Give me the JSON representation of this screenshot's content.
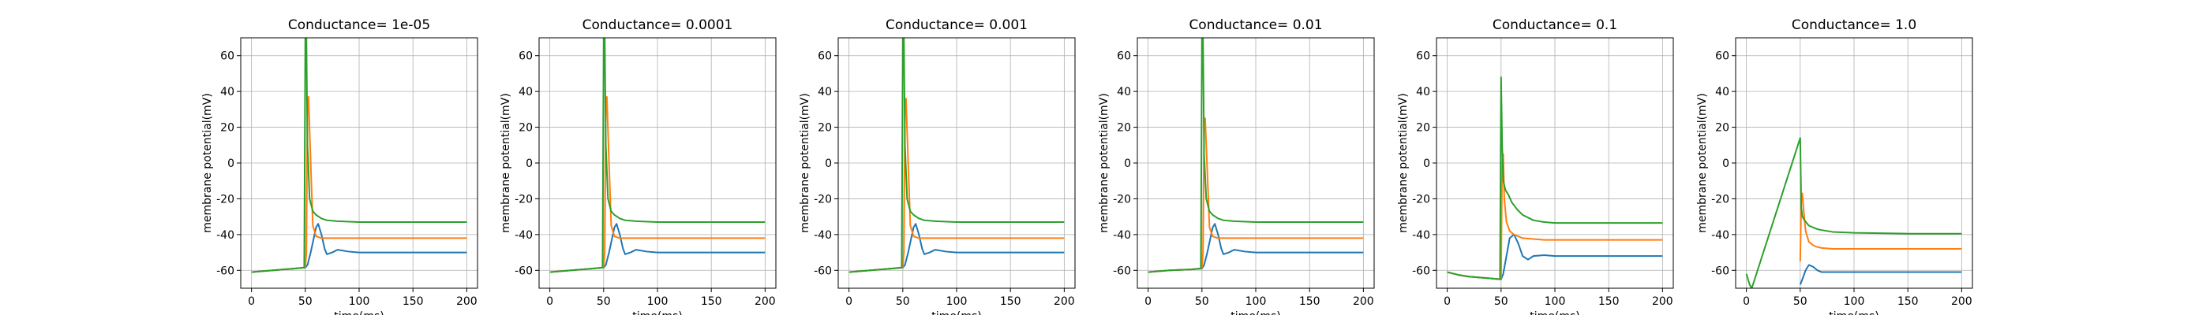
{
  "chart_data": [
    {
      "type": "line",
      "title": "Conductance= 1e-05",
      "xlabel": "time(ms)",
      "ylabel": "membrane potential(mV)",
      "xlim": [
        -10,
        210
      ],
      "ylim": [
        -70,
        70
      ],
      "xticks": [
        "0",
        "50",
        "100",
        "150",
        "200"
      ],
      "yticks": [
        "-60",
        "-40",
        "-20",
        "0",
        "20",
        "40",
        "60"
      ],
      "grid": true,
      "series": [
        {
          "color": "#1f77b4",
          "x": [
            0,
            20,
            40,
            49,
            50,
            52,
            55,
            60,
            62,
            65,
            68,
            70,
            75,
            80,
            90,
            100,
            120,
            150,
            200
          ],
          "y": [
            -61,
            -60,
            -59,
            -58.5,
            -58.5,
            -57,
            -50,
            -36,
            -34,
            -40,
            -48,
            -51,
            -50,
            -48.5,
            -49.5,
            -50,
            -50,
            -50,
            -50
          ]
        },
        {
          "color": "#ff7f0e",
          "x": [
            0,
            20,
            40,
            49,
            50,
            51,
            52,
            53,
            55,
            57,
            60,
            65,
            70,
            80,
            100,
            150,
            200
          ],
          "y": [
            -61,
            -60,
            -59,
            -58.5,
            -58,
            -50,
            30,
            37,
            0,
            -35,
            -41,
            -42,
            -42,
            -42,
            -42,
            -42,
            -42
          ]
        },
        {
          "color": "#2ca02c",
          "x": [
            0,
            20,
            40,
            48,
            49,
            50,
            51,
            52,
            54,
            57,
            60,
            65,
            70,
            80,
            100,
            150,
            200
          ],
          "y": [
            -61,
            -60,
            -59,
            -58.5,
            -58.5,
            70,
            70,
            10,
            -20,
            -27,
            -29,
            -31,
            -32,
            -32.5,
            -33,
            -33,
            -33
          ]
        }
      ]
    },
    {
      "type": "line",
      "title": "Conductance= 0.0001",
      "xlabel": "time(ms)",
      "ylabel": "membrane potential(mV)",
      "xlim": [
        -10,
        210
      ],
      "ylim": [
        -70,
        70
      ],
      "xticks": [
        "0",
        "50",
        "100",
        "150",
        "200"
      ],
      "yticks": [
        "-60",
        "-40",
        "-20",
        "0",
        "20",
        "40",
        "60"
      ],
      "grid": true,
      "series": [
        {
          "color": "#1f77b4",
          "x": [
            0,
            20,
            40,
            49,
            50,
            52,
            55,
            60,
            62,
            65,
            68,
            70,
            75,
            80,
            90,
            100,
            120,
            150,
            200
          ],
          "y": [
            -61,
            -60,
            -59,
            -58.5,
            -58.5,
            -57,
            -50,
            -36,
            -34,
            -40,
            -48,
            -51,
            -50,
            -48.5,
            -49.5,
            -50,
            -50,
            -50,
            -50
          ]
        },
        {
          "color": "#ff7f0e",
          "x": [
            0,
            20,
            40,
            49,
            50,
            51,
            52,
            53,
            55,
            57,
            60,
            65,
            70,
            80,
            100,
            150,
            200
          ],
          "y": [
            -61,
            -60,
            -59,
            -58.5,
            -58,
            -50,
            30,
            37,
            0,
            -35,
            -41,
            -42,
            -42,
            -42,
            -42,
            -42,
            -42
          ]
        },
        {
          "color": "#2ca02c",
          "x": [
            0,
            20,
            40,
            48,
            49,
            50,
            51,
            52,
            54,
            57,
            60,
            65,
            70,
            80,
            100,
            150,
            200
          ],
          "y": [
            -61,
            -60,
            -59,
            -58.5,
            -58.5,
            70,
            70,
            10,
            -20,
            -27,
            -29,
            -31,
            -32,
            -32.5,
            -33,
            -33,
            -33
          ]
        }
      ]
    },
    {
      "type": "line",
      "title": "Conductance= 0.001",
      "xlabel": "time(ms)",
      "ylabel": "membrane potential(mV)",
      "xlim": [
        -10,
        210
      ],
      "ylim": [
        -70,
        70
      ],
      "xticks": [
        "0",
        "50",
        "100",
        "150",
        "200"
      ],
      "yticks": [
        "-60",
        "-40",
        "-20",
        "0",
        "20",
        "40",
        "60"
      ],
      "grid": true,
      "series": [
        {
          "color": "#1f77b4",
          "x": [
            0,
            20,
            40,
            49,
            50,
            52,
            55,
            60,
            62,
            65,
            68,
            70,
            75,
            80,
            90,
            100,
            120,
            150,
            200
          ],
          "y": [
            -61,
            -60,
            -59,
            -58.5,
            -58.5,
            -57,
            -50,
            -36,
            -34,
            -40,
            -48,
            -51,
            -50,
            -48.5,
            -49.5,
            -50,
            -50,
            -50,
            -50
          ]
        },
        {
          "color": "#ff7f0e",
          "x": [
            0,
            20,
            40,
            49,
            50,
            51,
            52,
            53,
            55,
            57,
            60,
            65,
            70,
            80,
            100,
            150,
            200
          ],
          "y": [
            -61,
            -60,
            -59,
            -58.5,
            -58,
            -50,
            30,
            36,
            0,
            -35,
            -41,
            -42,
            -42,
            -42,
            -42,
            -42,
            -42
          ]
        },
        {
          "color": "#2ca02c",
          "x": [
            0,
            20,
            40,
            48,
            49,
            50,
            51,
            52,
            54,
            57,
            60,
            65,
            70,
            80,
            100,
            150,
            200
          ],
          "y": [
            -61,
            -60,
            -59,
            -58.5,
            -58.5,
            70,
            70,
            10,
            -20,
            -27,
            -29,
            -31,
            -32,
            -32.5,
            -33,
            -33,
            -33
          ]
        }
      ]
    },
    {
      "type": "line",
      "title": "Conductance= 0.01",
      "xlabel": "time(ms)",
      "ylabel": "membrane potential(mV)",
      "xlim": [
        -10,
        210
      ],
      "ylim": [
        -70,
        70
      ],
      "xticks": [
        "0",
        "50",
        "100",
        "150",
        "200"
      ],
      "yticks": [
        "-60",
        "-40",
        "-20",
        "0",
        "20",
        "40",
        "60"
      ],
      "grid": true,
      "series": [
        {
          "color": "#1f77b4",
          "x": [
            0,
            20,
            40,
            49,
            50,
            52,
            55,
            60,
            62,
            65,
            68,
            70,
            75,
            80,
            90,
            100,
            120,
            150,
            200
          ],
          "y": [
            -61,
            -60,
            -59.5,
            -59,
            -59,
            -57,
            -50,
            -36,
            -34,
            -40,
            -48,
            -51,
            -50,
            -48.5,
            -49.5,
            -50,
            -50,
            -50,
            -50
          ]
        },
        {
          "color": "#ff7f0e",
          "x": [
            0,
            20,
            40,
            49,
            50,
            51,
            52,
            53,
            55,
            57,
            60,
            65,
            70,
            80,
            100,
            150,
            200
          ],
          "y": [
            -61,
            -60,
            -59.5,
            -59,
            -58.5,
            -50,
            20,
            25,
            -5,
            -36,
            -41,
            -42,
            -42,
            -42,
            -42,
            -42,
            -42
          ]
        },
        {
          "color": "#2ca02c",
          "x": [
            0,
            20,
            40,
            48,
            49,
            50,
            51,
            52,
            54,
            57,
            60,
            65,
            70,
            80,
            100,
            150,
            200
          ],
          "y": [
            -61,
            -60,
            -59.5,
            -59,
            -59,
            70,
            70,
            5,
            -20,
            -27,
            -29,
            -31,
            -32,
            -32.5,
            -33,
            -33,
            -33
          ]
        }
      ]
    },
    {
      "type": "line",
      "title": "Conductance= 0.1",
      "xlabel": "time(ms)",
      "ylabel": "membrane potential(mV)",
      "xlim": [
        -10,
        210
      ],
      "ylim": [
        -70,
        70
      ],
      "xticks": [
        "0",
        "50",
        "100",
        "150",
        "200"
      ],
      "yticks": [
        "-60",
        "-40",
        "-20",
        "0",
        "20",
        "40",
        "60"
      ],
      "grid": true,
      "series": [
        {
          "color": "#1f77b4",
          "x": [
            0,
            10,
            20,
            30,
            40,
            49,
            50,
            52,
            55,
            58,
            62,
            66,
            70,
            75,
            80,
            90,
            100,
            150,
            200
          ],
          "y": [
            -61,
            -62.5,
            -63.5,
            -64,
            -64.5,
            -65,
            -65,
            -62,
            -52,
            -42,
            -40,
            -45,
            -52,
            -54,
            -52,
            -51.5,
            -52,
            -52,
            -52
          ]
        },
        {
          "color": "#ff7f0e",
          "x": [
            0,
            10,
            20,
            30,
            40,
            49,
            50,
            51,
            52,
            53,
            55,
            58,
            62,
            66,
            70,
            80,
            90,
            100,
            150,
            200
          ],
          "y": [
            -61,
            -62.5,
            -63.5,
            -64,
            -64.5,
            -65,
            -64,
            0,
            5,
            -20,
            -33,
            -38,
            -40,
            -41,
            -42,
            -42.5,
            -43,
            -43,
            -43,
            -43
          ]
        },
        {
          "color": "#2ca02c",
          "x": [
            0,
            10,
            20,
            30,
            40,
            49,
            50,
            51,
            52,
            54,
            57,
            60,
            65,
            70,
            80,
            90,
            100,
            150,
            200
          ],
          "y": [
            -61,
            -62.5,
            -63.5,
            -64,
            -64.5,
            -65,
            48,
            10,
            -10,
            -15,
            -18,
            -22,
            -26,
            -29,
            -32,
            -33,
            -33.5,
            -33.5,
            -33.5
          ]
        }
      ]
    },
    {
      "type": "line",
      "title": "Conductance= 1.0",
      "xlabel": "time(ms)",
      "ylabel": "membrane potential(mV)",
      "xlim": [
        -10,
        210
      ],
      "ylim": [
        -70,
        70
      ],
      "xticks": [
        "0",
        "50",
        "100",
        "150",
        "200"
      ],
      "yticks": [
        "-60",
        "-40",
        "-20",
        "0",
        "20",
        "40",
        "60"
      ],
      "grid": true,
      "series": [
        {
          "color": "#1f77b4",
          "x": [
            50,
            52,
            55,
            58,
            62,
            66,
            70,
            80,
            100,
            150,
            200
          ],
          "y": [
            -68,
            -65,
            -60,
            -57,
            -58,
            -60,
            -61,
            -61,
            -61,
            -61,
            -61
          ]
        },
        {
          "color": "#ff7f0e",
          "x": [
            50,
            51,
            52,
            53,
            55,
            58,
            62,
            66,
            70,
            80,
            100,
            150,
            200
          ],
          "y": [
            -55,
            -20,
            -17,
            -25,
            -38,
            -44,
            -46,
            -47,
            -47.5,
            -48,
            -48,
            -48,
            -48
          ]
        },
        {
          "color": "#2ca02c",
          "x": [
            0,
            1,
            3,
            5,
            50,
            51,
            52,
            54,
            58,
            62,
            66,
            70,
            80,
            100,
            150,
            200
          ],
          "y": [
            -62,
            -64,
            -68,
            -70,
            14,
            -25,
            -30,
            -32,
            -35,
            -36,
            -37,
            -37.5,
            -38.5,
            -39,
            -39.5,
            -39.5
          ]
        }
      ]
    }
  ]
}
